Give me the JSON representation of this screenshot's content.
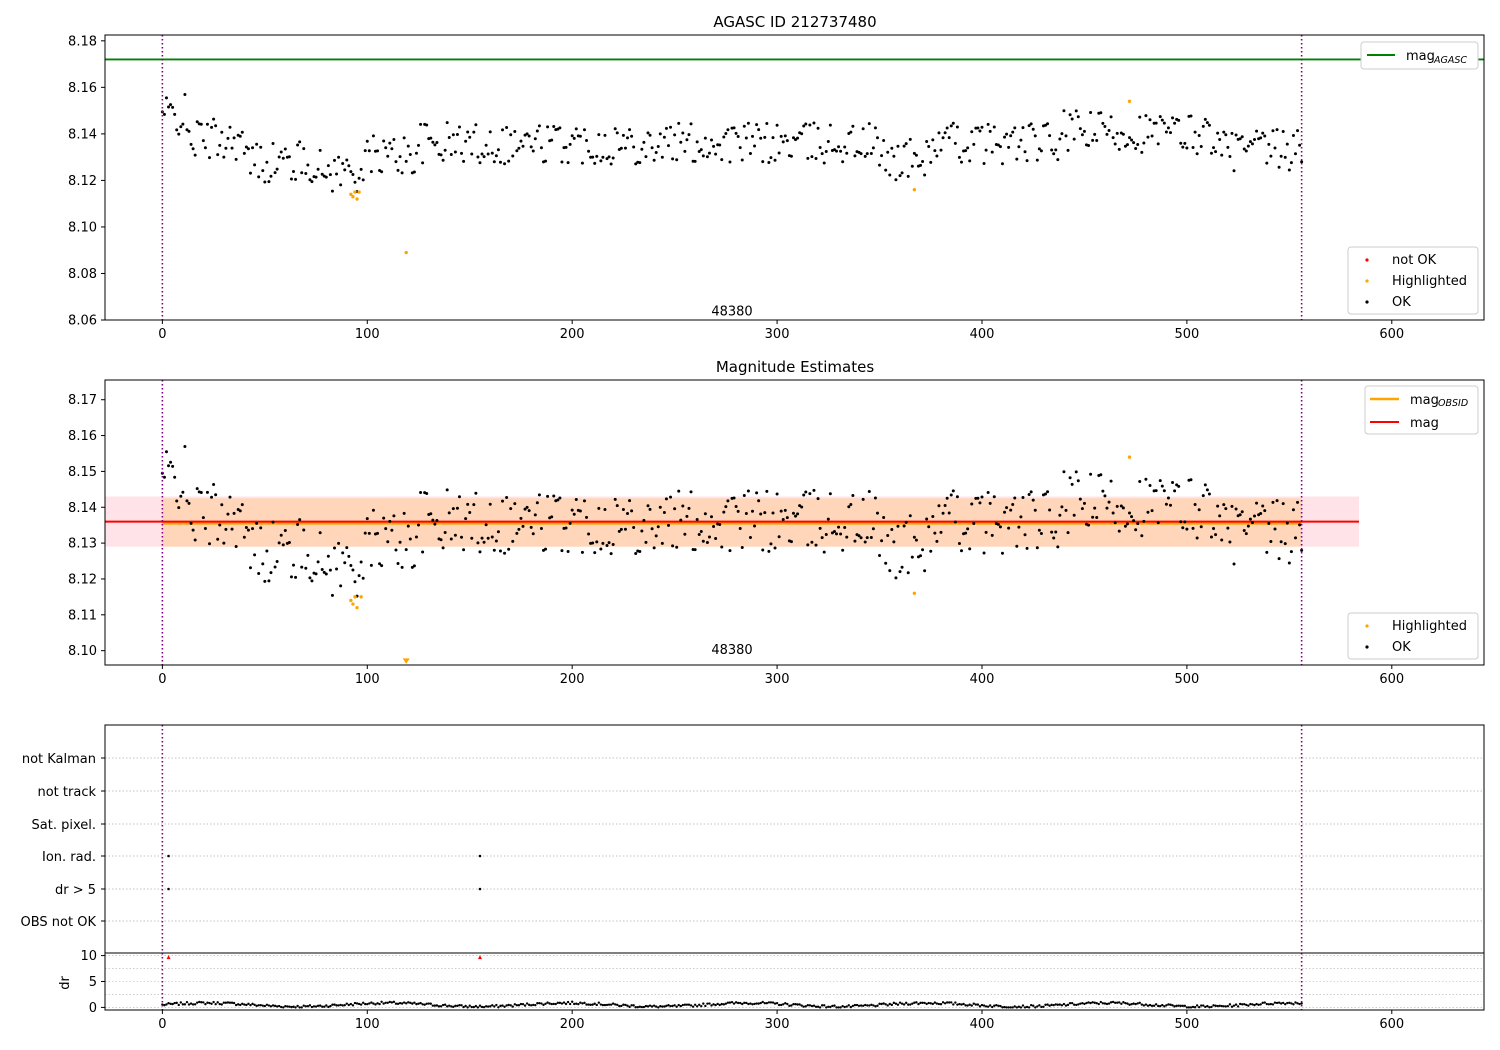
{
  "colors": {
    "ok": "#000000",
    "highlighted": "#ffa500",
    "not_ok": "#ff0000",
    "agasc_line": "#008000",
    "mag_line": "#ff0000",
    "obsid_line": "#ffa500",
    "band_fill": "#ffc0cb",
    "obsid_band": "#ffa500",
    "marker_line": "#800080",
    "grid": "#b0b0b0"
  },
  "chart_data": [
    {
      "type": "scatter",
      "title": "AGASC ID 212737480",
      "xlim": [
        -28,
        645
      ],
      "ylim": [
        8.06,
        8.1825
      ],
      "xticks": [
        0,
        100,
        200,
        300,
        400,
        500,
        600
      ],
      "yticks": [
        8.06,
        8.08,
        8.1,
        8.12,
        8.14,
        8.16,
        8.18
      ],
      "ytick_labels": [
        "8.06",
        "8.08",
        "8.10",
        "8.12",
        "8.14",
        "8.16",
        "8.18"
      ],
      "vlines": [
        0,
        556
      ],
      "annotation": {
        "text": "48380",
        "x": 278,
        "y": 8.064
      },
      "hline": {
        "name": "mag_AGASC",
        "y": 8.172
      },
      "legend_lines": [
        {
          "label": "mag",
          "sub": "AGASC",
          "color": "agasc_line"
        }
      ],
      "legend_points": [
        {
          "label": "not OK",
          "color": "not_ok"
        },
        {
          "label": "Highlighted",
          "color": "highlighted"
        },
        {
          "label": "OK",
          "color": "ok"
        }
      ],
      "highlighted": [
        [
          92,
          8.114
        ],
        [
          93,
          8.113
        ],
        [
          94,
          8.115
        ],
        [
          95,
          8.112
        ],
        [
          96,
          8.115
        ],
        [
          119,
          8.089
        ],
        [
          367,
          8.116
        ],
        [
          472,
          8.154
        ]
      ]
    },
    {
      "type": "scatter",
      "title": "Magnitude Estimates",
      "xlim": [
        -28,
        645
      ],
      "ylim": [
        8.096,
        8.1755
      ],
      "xticks": [
        0,
        100,
        200,
        300,
        400,
        500,
        600
      ],
      "yticks": [
        8.1,
        8.11,
        8.12,
        8.13,
        8.14,
        8.15,
        8.16,
        8.17
      ],
      "ytick_labels": [
        "8.10",
        "8.11",
        "8.12",
        "8.13",
        "8.14",
        "8.15",
        "8.16",
        "8.17"
      ],
      "vlines": [
        0,
        556
      ],
      "annotation": {
        "text": "48380",
        "x": 278,
        "y": 8.1005
      },
      "mag": {
        "y": 8.136,
        "band": [
          8.129,
          8.143
        ],
        "x": [
          -28,
          584
        ]
      },
      "mag_obsid": {
        "y": 8.1355,
        "band": [
          8.129,
          8.1425
        ],
        "x": [
          0,
          556
        ]
      },
      "legend_lines": [
        {
          "label": "mag",
          "sub": "OBSID",
          "color": "obsid_line"
        },
        {
          "label": "mag",
          "sub": "",
          "color": "mag_line"
        }
      ],
      "legend_points": [
        {
          "label": "Highlighted",
          "color": "highlighted"
        },
        {
          "label": "OK",
          "color": "ok"
        }
      ],
      "highlighted": [
        [
          92,
          8.114
        ],
        [
          93,
          8.113
        ],
        [
          94,
          8.115
        ],
        [
          95,
          8.112
        ],
        [
          97,
          8.115
        ],
        [
          367,
          8.116
        ],
        [
          472,
          8.154
        ]
      ],
      "clipped_marker": {
        "x": 119,
        "y": 8.097
      }
    },
    {
      "type": "scatter",
      "title": "",
      "flag_labels": [
        "not Kalman",
        "not track",
        "Sat. pixel.",
        "Ion. rad.",
        "dr > 5",
        "OBS not OK"
      ],
      "flag_points": [
        {
          "flag": "Ion. rad.",
          "x": [
            3,
            155
          ]
        },
        {
          "flag": "dr > 5",
          "x": [
            3,
            155
          ]
        }
      ],
      "vlines": [
        0,
        556
      ],
      "xlim": [
        -28,
        645
      ]
    },
    {
      "type": "scatter",
      "ylabel": "dr",
      "xlim": [
        -28,
        645
      ],
      "ylim": [
        -0.5,
        10.5
      ],
      "yticks": [
        0,
        5,
        10
      ],
      "xticks": [
        0,
        100,
        200,
        300,
        400,
        500,
        600
      ],
      "vlines": [
        0,
        556
      ],
      "not_ok_points": [
        [
          3,
          9.7
        ],
        [
          155,
          9.7
        ]
      ]
    }
  ]
}
